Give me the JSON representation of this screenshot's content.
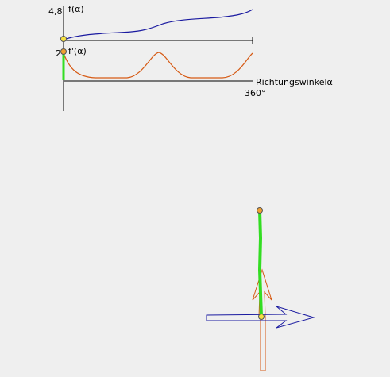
{
  "graph": {
    "f_max": "4,8",
    "f_label": "f(α)",
    "fp_max": "2",
    "fp_label": "f'(α)",
    "x_label": "Richtungswinkelα",
    "x_max": "360°"
  }
}
